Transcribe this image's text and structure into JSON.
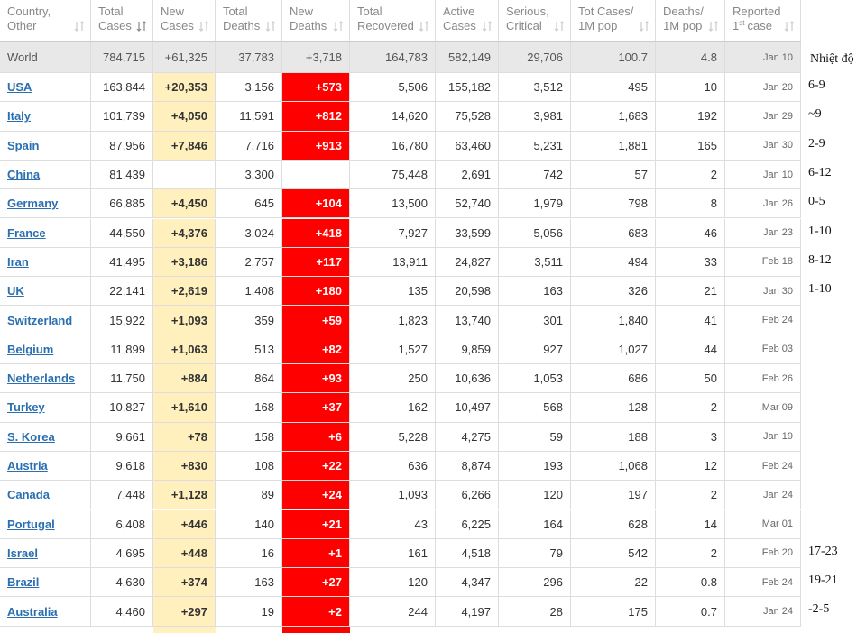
{
  "table": {
    "headers": [
      [
        "Country,",
        "Other"
      ],
      [
        "Total",
        "Cases"
      ],
      [
        "New",
        "Cases"
      ],
      [
        "Total",
        "Deaths"
      ],
      [
        "New",
        "Deaths"
      ],
      [
        "Total",
        "Recovered"
      ],
      [
        "Active",
        "Cases"
      ],
      [
        "Serious,",
        "Critical"
      ],
      [
        "Tot Cases/",
        "1M pop"
      ],
      [
        "Deaths/",
        "1M pop"
      ],
      [
        "Reported",
        [
          "1",
          "st",
          "case"
        ]
      ]
    ],
    "world": [
      "World",
      "784,715",
      "+61,325",
      "37,783",
      "+3,718",
      "164,783",
      "582,149",
      "29,706",
      "100.7",
      "4.8",
      "Jan 10"
    ],
    "rows": [
      [
        "USA",
        "163,844",
        "+20,353",
        "3,156",
        "+573",
        "5,506",
        "155,182",
        "3,512",
        "495",
        "10",
        "Jan 20"
      ],
      [
        "Italy",
        "101,739",
        "+4,050",
        "11,591",
        "+812",
        "14,620",
        "75,528",
        "3,981",
        "1,683",
        "192",
        "Jan 29"
      ],
      [
        "Spain",
        "87,956",
        "+7,846",
        "7,716",
        "+913",
        "16,780",
        "63,460",
        "5,231",
        "1,881",
        "165",
        "Jan 30"
      ],
      [
        "China",
        "81,439",
        null,
        "3,300",
        null,
        "75,448",
        "2,691",
        "742",
        "57",
        "2",
        "Jan 10"
      ],
      [
        "Germany",
        "66,885",
        "+4,450",
        "645",
        "+104",
        "13,500",
        "52,740",
        "1,979",
        "798",
        "8",
        "Jan 26"
      ],
      [
        "France",
        "44,550",
        "+4,376",
        "3,024",
        "+418",
        "7,927",
        "33,599",
        "5,056",
        "683",
        "46",
        "Jan 23"
      ],
      [
        "Iran",
        "41,495",
        "+3,186",
        "2,757",
        "+117",
        "13,911",
        "24,827",
        "3,511",
        "494",
        "33",
        "Feb 18"
      ],
      [
        "UK",
        "22,141",
        "+2,619",
        "1,408",
        "+180",
        "135",
        "20,598",
        "163",
        "326",
        "21",
        "Jan 30"
      ],
      [
        "Switzerland",
        "15,922",
        "+1,093",
        "359",
        "+59",
        "1,823",
        "13,740",
        "301",
        "1,840",
        "41",
        "Feb 24"
      ],
      [
        "Belgium",
        "11,899",
        "+1,063",
        "513",
        "+82",
        "1,527",
        "9,859",
        "927",
        "1,027",
        "44",
        "Feb 03"
      ],
      [
        "Netherlands",
        "11,750",
        "+884",
        "864",
        "+93",
        "250",
        "10,636",
        "1,053",
        "686",
        "50",
        "Feb 26"
      ],
      [
        "Turkey",
        "10,827",
        "+1,610",
        "168",
        "+37",
        "162",
        "10,497",
        "568",
        "128",
        "2",
        "Mar 09"
      ],
      [
        "S. Korea",
        "9,661",
        "+78",
        "158",
        "+6",
        "5,228",
        "4,275",
        "59",
        "188",
        "3",
        "Jan 19"
      ],
      [
        "Austria",
        "9,618",
        "+830",
        "108",
        "+22",
        "636",
        "8,874",
        "193",
        "1,068",
        "12",
        "Feb 24"
      ],
      [
        "Canada",
        "7,448",
        "+1,128",
        "89",
        "+24",
        "1,093",
        "6,266",
        "120",
        "197",
        "2",
        "Jan 24"
      ],
      [
        "Portugal",
        "6,408",
        "+446",
        "140",
        "+21",
        "43",
        "6,225",
        "164",
        "628",
        "14",
        "Mar 01"
      ],
      [
        "Israel",
        "4,695",
        "+448",
        "16",
        "+1",
        "161",
        "4,518",
        "79",
        "542",
        "2",
        "Feb 20"
      ],
      [
        "Brazil",
        "4,630",
        "+374",
        "163",
        "+27",
        "120",
        "4,347",
        "296",
        "22",
        "0.8",
        "Feb 24"
      ],
      [
        "Australia",
        "4,460",
        "+297",
        "19",
        "+2",
        "244",
        "4,197",
        "28",
        "175",
        "0.7",
        "Jan 24"
      ]
    ]
  },
  "temperature": {
    "title": "Nhiệt độ",
    "values": [
      "6-9",
      "~9",
      "2-9",
      "6-12",
      "0-5",
      "1-10",
      "8-12",
      "1-10",
      null,
      null,
      null,
      null,
      null,
      null,
      null,
      null,
      "17-23",
      "19-21",
      "-2-5"
    ]
  }
}
